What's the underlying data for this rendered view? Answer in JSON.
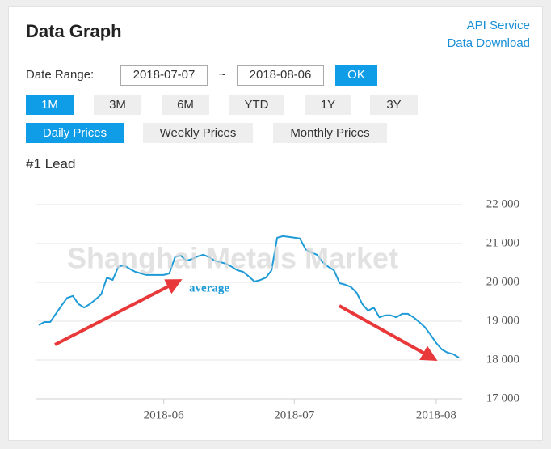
{
  "header": {
    "title": "Data Graph",
    "links": [
      "API Service",
      "Data Download"
    ]
  },
  "date_range": {
    "label": "Date Range:",
    "start": "2018-07-07",
    "separator": "~",
    "end": "2018-08-06",
    "button": "OK"
  },
  "periods": {
    "options": [
      "1M",
      "3M",
      "6M",
      "YTD",
      "1Y",
      "3Y"
    ],
    "selected": 0
  },
  "price_types": {
    "options": [
      "Daily Prices",
      "Weekly Prices",
      "Monthly Prices"
    ],
    "selected": 0
  },
  "chart_data": {
    "type": "line",
    "title": "#1 Lead",
    "watermark": "Shanghai Metals Market",
    "annotation": "average",
    "categories": [
      null,
      null,
      null,
      null,
      null,
      null,
      null,
      null,
      null,
      null,
      null,
      null,
      null,
      null,
      null,
      null,
      null,
      null,
      null,
      null,
      null,
      null,
      "2018-06",
      null,
      null,
      null,
      null,
      null,
      null,
      null,
      null,
      null,
      null,
      null,
      null,
      null,
      null,
      null,
      null,
      null,
      null,
      null,
      null,
      null,
      null,
      "2018-07",
      null,
      null,
      null,
      null,
      null,
      null,
      null,
      null,
      null,
      null,
      null,
      null,
      null,
      null,
      null,
      null,
      null,
      null,
      null,
      null,
      null,
      null,
      null,
      null,
      "2018-08",
      null,
      null,
      null,
      null
    ],
    "values": [
      18900,
      18980,
      18980,
      19190,
      19400,
      19600,
      19650,
      19440,
      19350,
      19440,
      19560,
      19690,
      20120,
      20060,
      20400,
      20440,
      20350,
      20270,
      20230,
      20190,
      20190,
      20190,
      20190,
      20230,
      20650,
      20690,
      20560,
      20600,
      20670,
      20710,
      20650,
      20560,
      20520,
      20480,
      20400,
      20310,
      20270,
      20150,
      20020,
      20060,
      20120,
      20310,
      21150,
      21190,
      21170,
      21150,
      21130,
      20850,
      20770,
      20710,
      20520,
      20400,
      20310,
      19980,
      19940,
      19880,
      19730,
      19440,
      19270,
      19350,
      19100,
      19150,
      19150,
      19100,
      19190,
      19190,
      19100,
      18980,
      18850,
      18650,
      18440,
      18270,
      18190,
      18150,
      18060
    ],
    "color": "#1e9bd7",
    "ylim": [
      17000,
      22000
    ],
    "yticks": [
      {
        "value": 17000,
        "label": "17 000"
      },
      {
        "value": 18000,
        "label": "18 000"
      },
      {
        "value": 19000,
        "label": "19 000"
      },
      {
        "value": 20000,
        "label": "20 000"
      },
      {
        "value": 21000,
        "label": "21 000"
      },
      {
        "value": 22000,
        "label": "22 000"
      }
    ],
    "grid": true
  }
}
